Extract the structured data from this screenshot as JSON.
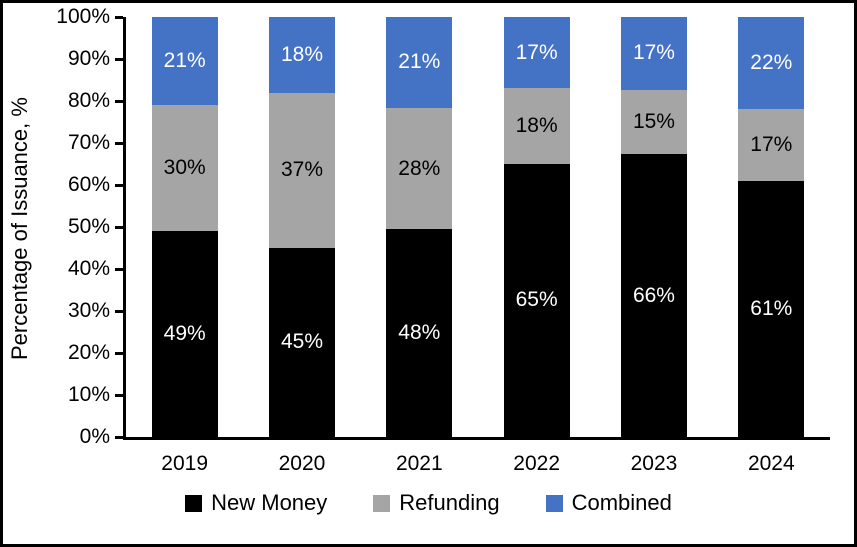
{
  "chart_data": {
    "type": "bar",
    "stacked": true,
    "title": "",
    "xlabel": "",
    "ylabel": "Percentage of Issuance, %",
    "categories": [
      "2019",
      "2020",
      "2021",
      "2022",
      "2023",
      "2024"
    ],
    "series": [
      {
        "name": "New Money",
        "color": "#000000",
        "label_color": "#FFFFFF",
        "values": [
          49,
          45,
          48,
          65,
          66,
          61
        ]
      },
      {
        "name": "Refunding",
        "color": "#A5A5A5",
        "label_color": "#000000",
        "values": [
          30,
          37,
          28,
          18,
          15,
          17
        ]
      },
      {
        "name": "Combined",
        "color": "#4472C4",
        "label_color": "#FFFFFF",
        "values": [
          21,
          18,
          21,
          17,
          17,
          22
        ]
      }
    ],
    "value_label_suffix": "%",
    "ylim": [
      0,
      100
    ],
    "y_tick_step": 10,
    "y_tick_labels": [
      "0%",
      "10%",
      "20%",
      "30%",
      "40%",
      "50%",
      "60%",
      "70%",
      "80%",
      "90%",
      "100%"
    ],
    "grid": false,
    "legend_position": "bottom",
    "axis_color": "#000000",
    "background_color": "#FFFFFF"
  }
}
